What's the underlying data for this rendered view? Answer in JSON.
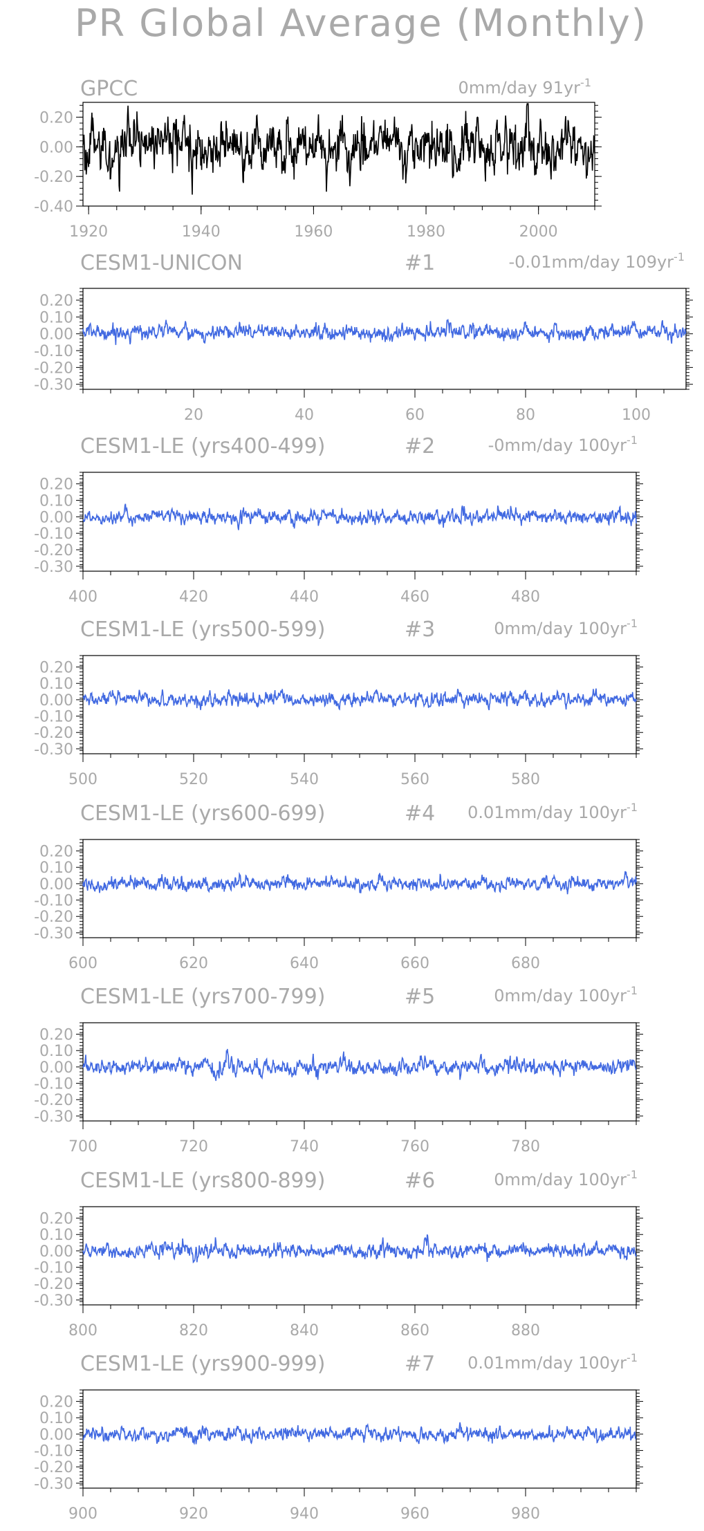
{
  "figure_title": "PR Global Average (Monthly)",
  "chart_data": [
    {
      "type": "line",
      "title": "GPCC",
      "ensemble": "",
      "trend": "0mm/day 91yr",
      "trend_exp": "-1",
      "xlim": [
        1919,
        2010
      ],
      "ylim": [
        -0.4,
        0.3
      ],
      "xticks": [
        1920,
        1940,
        1960,
        1980,
        2000
      ],
      "yticks": [
        0.2,
        0.0,
        -0.2,
        -0.4
      ],
      "ytick_labels": [
        "0.20",
        "0.00",
        "-0.20",
        "-0.40"
      ],
      "color": "#000000",
      "amplitude": 0.075,
      "months": 1092,
      "series": [
        {
          "x": [
            1919,
            2010
          ],
          "y_mean": 0.0
        }
      ],
      "features": [
        [
          1974,
          0.1
        ],
        [
          1992,
          -0.15
        ],
        [
          1998,
          0.14
        ],
        [
          1943,
          -0.05
        ]
      ]
    },
    {
      "type": "line",
      "title": "CESM1-UNICON",
      "ensemble": "#1",
      "trend": "-0.01mm/day 109yr",
      "trend_exp": "-1",
      "xlim": [
        0,
        109
      ],
      "ylim": [
        -0.33,
        0.27
      ],
      "xticks": [
        20,
        40,
        60,
        80,
        100
      ],
      "yticks": [
        0.2,
        0.1,
        0.0,
        -0.1,
        -0.2,
        -0.3
      ],
      "ytick_labels": [
        "0.20",
        "0.10",
        "0.00",
        "-0.10",
        "-0.20",
        "-0.30"
      ],
      "color": "#4169e1",
      "amplitude": 0.02,
      "months": 1308,
      "series": [
        {
          "x": [
            0,
            109
          ],
          "y_mean": 0.01
        }
      ],
      "features": [
        [
          15,
          0.06
        ],
        [
          66,
          0.05
        ],
        [
          105,
          0.06
        ]
      ]
    },
    {
      "type": "line",
      "title": "CESM1-LE (yrs400-499)",
      "ensemble": "#2",
      "trend": "-0mm/day 100yr",
      "trend_exp": "-1",
      "xlim": [
        400,
        500
      ],
      "ylim": [
        -0.33,
        0.27
      ],
      "xticks": [
        400,
        420,
        440,
        460,
        480
      ],
      "yticks": [
        0.2,
        0.1,
        0.0,
        -0.1,
        -0.2,
        -0.3
      ],
      "ytick_labels": [
        "0.20",
        "0.10",
        "0.00",
        "-0.10",
        "-0.20",
        "-0.30"
      ],
      "color": "#4169e1",
      "amplitude": 0.018,
      "months": 1200,
      "series": [
        {
          "x": [
            400,
            500
          ],
          "y_mean": 0.0
        }
      ],
      "features": [
        [
          452,
          0.06
        ],
        [
          416,
          0.05
        ]
      ]
    },
    {
      "type": "line",
      "title": "CESM1-LE (yrs500-599)",
      "ensemble": "#3",
      "trend": "0mm/day 100yr",
      "trend_exp": "-1",
      "xlim": [
        500,
        600
      ],
      "ylim": [
        -0.33,
        0.27
      ],
      "xticks": [
        500,
        520,
        540,
        560,
        580
      ],
      "yticks": [
        0.2,
        0.1,
        0.0,
        -0.1,
        -0.2,
        -0.3
      ],
      "ytick_labels": [
        "0.20",
        "0.10",
        "0.00",
        "-0.10",
        "-0.20",
        "-0.30"
      ],
      "color": "#4169e1",
      "amplitude": 0.018,
      "months": 1200,
      "series": [
        {
          "x": [
            500,
            600
          ],
          "y_mean": 0.0
        }
      ],
      "features": [
        [
          553,
          0.07
        ],
        [
          536,
          0.06
        ],
        [
          568,
          0.05
        ]
      ]
    },
    {
      "type": "line",
      "title": "CESM1-LE (yrs600-699)",
      "ensemble": "#4",
      "trend": "0.01mm/day 100yr",
      "trend_exp": "-1",
      "xlim": [
        600,
        700
      ],
      "ylim": [
        -0.33,
        0.27
      ],
      "xticks": [
        600,
        620,
        640,
        660,
        680
      ],
      "yticks": [
        0.2,
        0.1,
        0.0,
        -0.1,
        -0.2,
        -0.3
      ],
      "ytick_labels": [
        "0.20",
        "0.10",
        "0.00",
        "-0.10",
        "-0.20",
        "-0.30"
      ],
      "color": "#4169e1",
      "amplitude": 0.018,
      "months": 1200,
      "series": [
        {
          "x": [
            600,
            700
          ],
          "y_mean": 0.0
        }
      ],
      "features": [
        [
          654,
          0.07
        ],
        [
          614,
          0.05
        ],
        [
          698,
          0.06
        ]
      ]
    },
    {
      "type": "line",
      "title": "CESM1-LE (yrs700-799)",
      "ensemble": "#5",
      "trend": "0mm/day 100yr",
      "trend_exp": "-1",
      "xlim": [
        700,
        800
      ],
      "ylim": [
        -0.33,
        0.27
      ],
      "xticks": [
        700,
        720,
        740,
        760,
        780
      ],
      "yticks": [
        0.2,
        0.1,
        0.0,
        -0.1,
        -0.2,
        -0.3
      ],
      "ytick_labels": [
        "0.20",
        "0.10",
        "0.00",
        "-0.10",
        "-0.20",
        "-0.30"
      ],
      "color": "#4169e1",
      "amplitude": 0.02,
      "months": 1200,
      "series": [
        {
          "x": [
            700,
            800
          ],
          "y_mean": 0.0
        }
      ],
      "features": [
        [
          726,
          0.06
        ],
        [
          761,
          0.07
        ],
        [
          772,
          0.06
        ],
        [
          724,
          -0.08
        ]
      ]
    },
    {
      "type": "line",
      "title": "CESM1-LE (yrs800-899)",
      "ensemble": "#6",
      "trend": "0mm/day 100yr",
      "trend_exp": "-1",
      "xlim": [
        800,
        900
      ],
      "ylim": [
        -0.33,
        0.27
      ],
      "xticks": [
        800,
        820,
        840,
        860,
        880
      ],
      "yticks": [
        0.2,
        0.1,
        0.0,
        -0.1,
        -0.2,
        -0.3
      ],
      "ytick_labels": [
        "0.20",
        "0.10",
        "0.00",
        "-0.10",
        "-0.20",
        "-0.30"
      ],
      "color": "#4169e1",
      "amplitude": 0.018,
      "months": 1200,
      "series": [
        {
          "x": [
            800,
            900
          ],
          "y_mean": 0.0
        }
      ],
      "features": [
        [
          862,
          0.13
        ],
        [
          898,
          -0.08
        ]
      ]
    },
    {
      "type": "line",
      "title": "CESM1-LE (yrs900-999)",
      "ensemble": "#7",
      "trend": "0.01mm/day 100yr",
      "trend_exp": "-1",
      "xlim": [
        900,
        1000
      ],
      "ylim": [
        -0.33,
        0.27
      ],
      "xticks": [
        900,
        920,
        940,
        960,
        980
      ],
      "yticks": [
        0.2,
        0.1,
        0.0,
        -0.1,
        -0.2,
        -0.3
      ],
      "ytick_labels": [
        "0.20",
        "0.10",
        "0.00",
        "-0.10",
        "-0.20",
        "-0.30"
      ],
      "color": "#4169e1",
      "amplitude": 0.018,
      "months": 1200,
      "series": [
        {
          "x": [
            900,
            1000
          ],
          "y_mean": 0.0
        }
      ],
      "features": [
        [
          968,
          0.09
        ],
        [
          928,
          0.07
        ]
      ]
    }
  ]
}
